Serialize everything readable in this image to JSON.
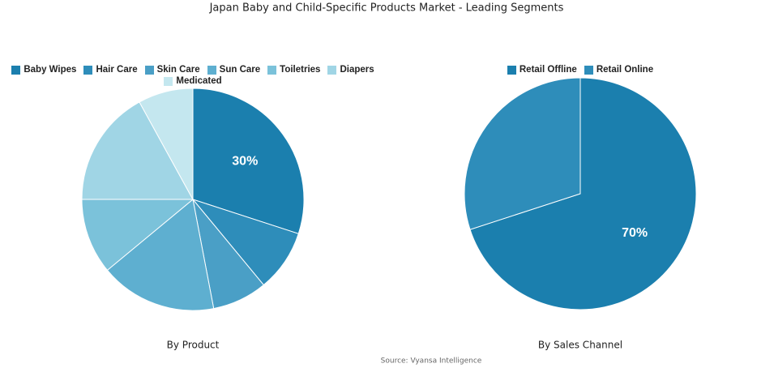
{
  "title": "Japan Baby and Child-Specific Products  Market - Leading Segments",
  "source": "Source: Vyansa Intelligence",
  "chart_data": [
    {
      "type": "pie",
      "title": "By Product",
      "categories": [
        "Baby Wipes",
        "Hair Care",
        "Skin Care",
        "Sun Care",
        "Toiletries",
        "Diapers",
        "Medicated"
      ],
      "values": [
        30,
        9,
        8,
        17,
        11,
        17,
        8
      ],
      "value_labels": [
        "30%",
        null,
        null,
        null,
        null,
        null,
        null
      ],
      "colors": [
        "#1b7fae",
        "#2e8dba",
        "#4a9fc6",
        "#5eafd0",
        "#7bc2da",
        "#a0d5e5",
        "#c4e7ef"
      ]
    },
    {
      "type": "pie",
      "title": "By Sales Channel",
      "categories": [
        "Retail Offline",
        "Retail Online"
      ],
      "values": [
        70,
        30
      ],
      "value_labels": [
        "70%",
        null
      ],
      "colors": [
        "#1b7fae",
        "#2e8dba"
      ]
    }
  ]
}
